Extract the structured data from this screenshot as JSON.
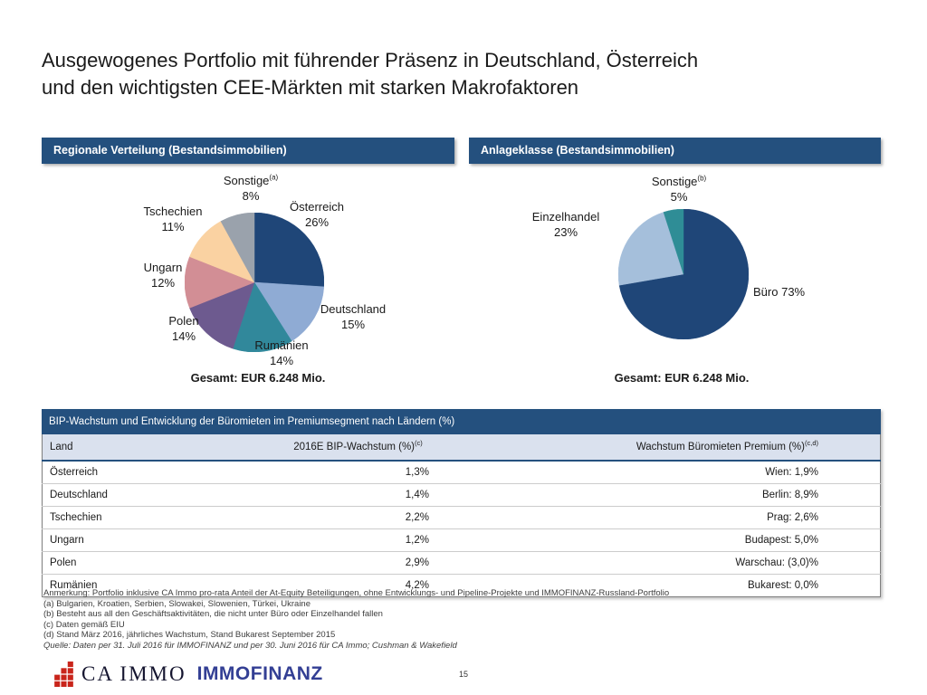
{
  "page": {
    "title_line1": "Ausgewogenes Portfolio mit führender Präsenz in Deutschland, Österreich",
    "title_line2": "und den wichtigsten CEE-Märkten mit starken Makrofaktoren"
  },
  "colors": {
    "section_bar_navy": "#24507E",
    "table_header_row_bg": "#DAE1EE",
    "logo_red": "#C9251B",
    "immofinanz_navy": "#333F94"
  },
  "chart_data": [
    {
      "type": "pie",
      "title": "Regionale Verteilung (Bestandsimmobilien)",
      "total": "Gesamt: EUR 6.248 Mio.",
      "slices": [
        {
          "label": "Österreich",
          "value": 26,
          "pct": "26%",
          "color": "#1F4678"
        },
        {
          "label": "Deutschland",
          "value": 15,
          "pct": "15%",
          "color": "#8FABD4"
        },
        {
          "label": "Rumänien",
          "value": 14,
          "pct": "14%",
          "color": "#31889B"
        },
        {
          "label": "Polen",
          "value": 14,
          "pct": "14%",
          "color": "#6D5A8F"
        },
        {
          "label": "Ungarn",
          "value": 12,
          "pct": "12%",
          "color": "#D28E95"
        },
        {
          "label": "Tschechien",
          "value": 11,
          "pct": "11%",
          "color": "#FAD2A2"
        },
        {
          "label": "Sonstige",
          "sup": "(a)",
          "value": 8,
          "pct": "8%",
          "color": "#9AA2AC"
        }
      ]
    },
    {
      "type": "pie",
      "title": "Anlageklasse (Bestandsimmobilien)",
      "total": "Gesamt: EUR 6.248 Mio.",
      "slices": [
        {
          "label": "Büro",
          "value": 73,
          "pct": "73%",
          "color": "#1F4678"
        },
        {
          "label": "Einzelhandel",
          "value": 23,
          "pct": "23%",
          "color": "#A5BFDB"
        },
        {
          "label": "Sonstige",
          "sup": "(b)",
          "value": 5,
          "pct": "5%",
          "color": "#2F8D96"
        }
      ]
    }
  ],
  "table": {
    "title": "BIP-Wachstum und Entwicklung der Büromieten im Premiumsegment nach Ländern (%)",
    "columns": [
      {
        "label": "Land",
        "sup": ""
      },
      {
        "label": "2016E BIP-Wachstum (%)",
        "sup": "(c)"
      },
      {
        "label": "Wachstum Büromieten Premium (%)",
        "sup": "(c,d)"
      }
    ],
    "rows": [
      [
        "Österreich",
        "1,3%",
        "Wien: 1,9%"
      ],
      [
        "Deutschland",
        "1,4%",
        "Berlin: 8,9%"
      ],
      [
        "Tschechien",
        "2,2%",
        "Prag: 2,6%"
      ],
      [
        "Ungarn",
        "1,2%",
        "Budapest: 5,0%"
      ],
      [
        "Polen",
        "2,9%",
        "Warschau: (3,0)%"
      ],
      [
        "Rumänien",
        "4,2%",
        "Bukarest: 0,0%"
      ]
    ]
  },
  "footnotes": [
    "Anmerkung: Portfolio inklusive CA Immo pro-rata Anteil der At-Equity Beteiligungen, ohne Entwicklungs- und Pipeline-Projekte und IMMOFINANZ-Russland-Portfolio",
    "(a) Bulgarien, Kroatien, Serbien, Slowakei, Slowenien, Türkei, Ukraine",
    "(b) Besteht aus all den Geschäftsaktivitäten, die nicht unter Büro oder Einzelhandel fallen",
    "(c) Daten gemäß EIU",
    "(d) Stand März 2016, jährliches Wachstum, Stand Bukarest September 2015"
  ],
  "source_note": "Quelle: Daten per 31. Juli 2016 für IMMOFINANZ und per 30. Juni 2016 für CA Immo; Cushman & Wakefield",
  "footer": {
    "ca_immo_label": "CA IMMO",
    "immofinanz_label": "IMMOFINANZ",
    "page_number": "15"
  }
}
